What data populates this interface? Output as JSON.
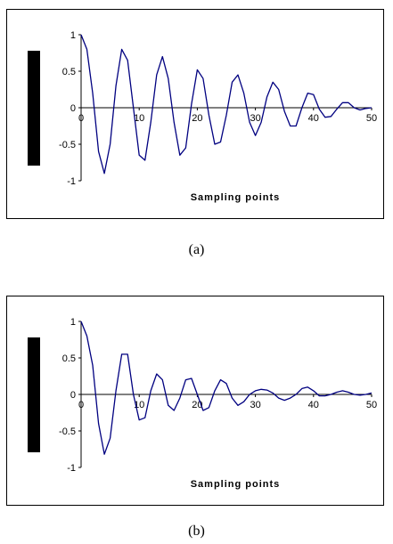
{
  "captions": {
    "a": "(a)",
    "b": "(b)"
  },
  "colors": {
    "series": "#000080",
    "axis": "#000000",
    "occluder": "#000000"
  },
  "chart_data": [
    {
      "type": "line",
      "title": "",
      "xlabel": "Sampling points",
      "ylabel": "",
      "xlim": [
        0,
        50
      ],
      "ylim": [
        -1,
        1
      ],
      "xticks": [
        0,
        10,
        20,
        30,
        40,
        50
      ],
      "yticks": [
        -1,
        -0.5,
        0,
        0.5,
        1
      ],
      "xtick_labels": [
        "0",
        "10",
        "20",
        "30",
        "40",
        "50"
      ],
      "ytick_labels": [
        "-1",
        "-0.5",
        "0",
        "0.5",
        "1"
      ],
      "grid": false,
      "series": [
        {
          "x": [
            0,
            1,
            2,
            3,
            4,
            5,
            6,
            7,
            8,
            9,
            10,
            11,
            12,
            13,
            14,
            15,
            16,
            17,
            18,
            19,
            20,
            21,
            22,
            23,
            24,
            25,
            26,
            27,
            28,
            29,
            30,
            31,
            32,
            33,
            34,
            35,
            36,
            37,
            38,
            39,
            40,
            41,
            42,
            43,
            44,
            45,
            46,
            47,
            48,
            49,
            50
          ],
          "y": [
            1.0,
            0.8,
            0.2,
            -0.6,
            -0.9,
            -0.5,
            0.3,
            0.8,
            0.65,
            0.0,
            -0.65,
            -0.72,
            -0.2,
            0.45,
            0.7,
            0.4,
            -0.2,
            -0.65,
            -0.55,
            0.05,
            0.52,
            0.4,
            -0.1,
            -0.5,
            -0.47,
            -0.1,
            0.35,
            0.45,
            0.2,
            -0.2,
            -0.38,
            -0.2,
            0.15,
            0.35,
            0.25,
            -0.05,
            -0.25,
            -0.25,
            0.0,
            0.2,
            0.18,
            -0.02,
            -0.13,
            -0.12,
            -0.02,
            0.07,
            0.07,
            0.0,
            -0.03,
            -0.01,
            0.0
          ]
        }
      ]
    },
    {
      "type": "line",
      "title": "",
      "xlabel": "Sampling points",
      "ylabel": "",
      "xlim": [
        0,
        50
      ],
      "ylim": [
        -1,
        1
      ],
      "xticks": [
        0,
        10,
        20,
        30,
        40,
        50
      ],
      "yticks": [
        -1,
        -0.5,
        0,
        0.5,
        1
      ],
      "xtick_labels": [
        "0",
        "10",
        "20",
        "30",
        "40",
        "50"
      ],
      "ytick_labels": [
        "-1",
        "-0.5",
        "0",
        "0.5",
        "1"
      ],
      "grid": false,
      "series": [
        {
          "x": [
            0,
            1,
            2,
            3,
            4,
            5,
            6,
            7,
            8,
            9,
            10,
            11,
            12,
            13,
            14,
            15,
            16,
            17,
            18,
            19,
            20,
            21,
            22,
            23,
            24,
            25,
            26,
            27,
            28,
            29,
            30,
            31,
            32,
            33,
            34,
            35,
            36,
            37,
            38,
            39,
            40,
            41,
            42,
            43,
            44,
            45,
            46,
            47,
            48,
            49,
            50
          ],
          "y": [
            1.0,
            0.8,
            0.4,
            -0.4,
            -0.82,
            -0.6,
            0.05,
            0.55,
            0.55,
            0.0,
            -0.35,
            -0.32,
            0.05,
            0.28,
            0.2,
            -0.15,
            -0.22,
            -0.05,
            0.2,
            0.22,
            0.0,
            -0.22,
            -0.18,
            0.05,
            0.2,
            0.15,
            -0.05,
            -0.15,
            -0.1,
            0.0,
            0.05,
            0.07,
            0.06,
            0.02,
            -0.05,
            -0.08,
            -0.05,
            0.0,
            0.08,
            0.1,
            0.05,
            -0.02,
            -0.02,
            0.0,
            0.03,
            0.05,
            0.03,
            0.0,
            -0.01,
            0.0,
            0.02
          ]
        }
      ]
    }
  ]
}
